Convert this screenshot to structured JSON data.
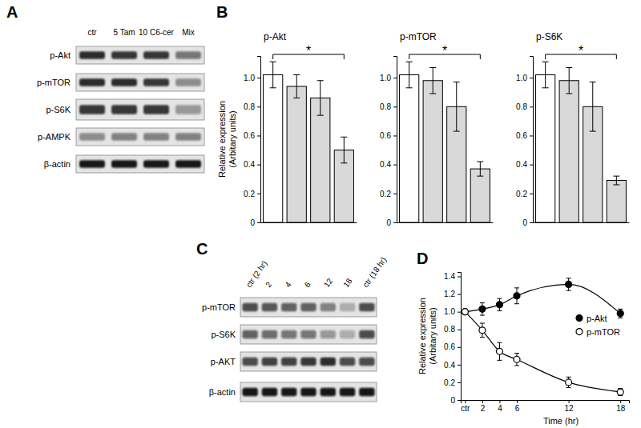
{
  "chart_data": [
    {
      "type": "blot",
      "panel": "A",
      "lanes": [
        "ctr",
        "5 Tam",
        "10 C6-cer",
        "Mix"
      ],
      "rows": [
        "p-Akt",
        "p-mTOR",
        "p-S6K",
        "p-AMPK",
        "β-actin"
      ],
      "bands": [
        [
          0.85,
          0.8,
          0.8,
          0.5
        ],
        [
          0.85,
          0.85,
          0.8,
          0.4
        ],
        [
          0.8,
          0.8,
          0.8,
          0.35
        ],
        [
          0.4,
          0.45,
          0.45,
          0.45
        ],
        [
          0.95,
          0.95,
          0.95,
          0.95
        ]
      ]
    },
    {
      "type": "bar",
      "panel": "B",
      "title": "p-Akt",
      "ylabel": [
        "Relative expression",
        "(Arbitary units)"
      ],
      "categories": [
        null,
        null,
        null,
        null
      ],
      "values": [
        1.02,
        0.94,
        0.86,
        0.5
      ],
      "errors": [
        0.09,
        0.08,
        0.12,
        0.09
      ],
      "colors": [
        "#ffffff",
        "#d9d9d9",
        "#d9d9d9",
        "#d9d9d9"
      ],
      "ylim": [
        0,
        1.15
      ],
      "yticks": [
        0,
        0.2,
        0.4,
        0.6,
        0.8,
        {
          "value": 1,
          "label": "1.0"
        }
      ],
      "tick_labels": "y",
      "significance": [
        {
          "text": "*",
          "between": [
            0,
            3
          ]
        }
      ]
    },
    {
      "type": "bar",
      "title": "p-mTOR",
      "categories": [
        null,
        null,
        null,
        null
      ],
      "values": [
        1.02,
        0.98,
        0.8,
        0.37
      ],
      "errors": [
        0.09,
        0.09,
        0.17,
        0.05
      ],
      "colors": [
        "#ffffff",
        "#d9d9d9",
        "#d9d9d9",
        "#d9d9d9"
      ],
      "ylim": [
        0,
        1.15
      ],
      "yticks": [
        0,
        0.2,
        0.4,
        0.6,
        0.8,
        {
          "value": 1,
          "label": "1.0"
        }
      ],
      "tick_labels": "y",
      "significance": [
        {
          "text": "*",
          "between": [
            0,
            3
          ]
        }
      ]
    },
    {
      "type": "bar",
      "title": "p-S6K",
      "categories": [
        null,
        null,
        null,
        null
      ],
      "values": [
        1.02,
        0.98,
        0.8,
        0.29
      ],
      "errors": [
        0.09,
        0.09,
        0.17,
        0.03
      ],
      "colors": [
        "#ffffff",
        "#d9d9d9",
        "#d9d9d9",
        "#d9d9d9"
      ],
      "ylim": [
        0,
        1.15
      ],
      "yticks": [
        0,
        0.2,
        0.4,
        0.6,
        0.8,
        {
          "value": 1,
          "label": "1.0"
        }
      ],
      "tick_labels": "y",
      "significance": [
        {
          "text": "*",
          "between": [
            0,
            3
          ]
        }
      ]
    },
    {
      "type": "blot",
      "panel": "C",
      "lanes": [
        "ctr (2 hr)",
        "2",
        "4",
        "6",
        "12",
        "18",
        "ctr (18 hr)"
      ],
      "rows": [
        "p-mTOR",
        "p-S6K",
        "p-AKT",
        "β-actin"
      ],
      "bands": [
        [
          0.7,
          0.65,
          0.6,
          0.6,
          0.45,
          0.25,
          0.7
        ],
        [
          0.6,
          0.55,
          0.5,
          0.5,
          0.35,
          0.25,
          0.7
        ],
        [
          0.7,
          0.75,
          0.75,
          0.8,
          0.85,
          0.7,
          0.7
        ],
        [
          0.95,
          0.95,
          0.95,
          0.95,
          0.95,
          0.95,
          0.95
        ]
      ]
    },
    {
      "type": "line",
      "panel": "D",
      "ylabel": [
        "Relative expression",
        "(Arbitary units)"
      ],
      "xlabel": "Time (hr)",
      "x": [
        0,
        2,
        4,
        6,
        12,
        18
      ],
      "series": [
        {
          "name": "p-Akt",
          "color": "#000000",
          "marker": "filled-circle",
          "values": [
            1.0,
            1.03,
            1.08,
            1.18,
            1.31,
            0.98
          ],
          "errors": [
            0,
            0.07,
            0.07,
            0.09,
            0.07,
            0.05
          ]
        },
        {
          "name": "p-mTOR",
          "color": "#000000",
          "marker": "open-circle",
          "values": [
            1.0,
            0.79,
            0.55,
            0.46,
            0.2,
            0.09
          ],
          "errors": [
            0,
            0.08,
            0.1,
            0.07,
            0.06,
            0.04
          ]
        }
      ],
      "xlim": [
        -0.5,
        19
      ],
      "ylim": [
        0,
        1.45
      ],
      "xticks": [
        {
          "value": 0,
          "label": "ctr"
        },
        2,
        4,
        6,
        12,
        18
      ],
      "yticks": [
        0,
        0.2,
        0.4,
        0.6,
        0.8,
        {
          "value": 1,
          "label": "1.0"
        },
        1.2,
        1.4
      ],
      "legend": "right"
    }
  ]
}
